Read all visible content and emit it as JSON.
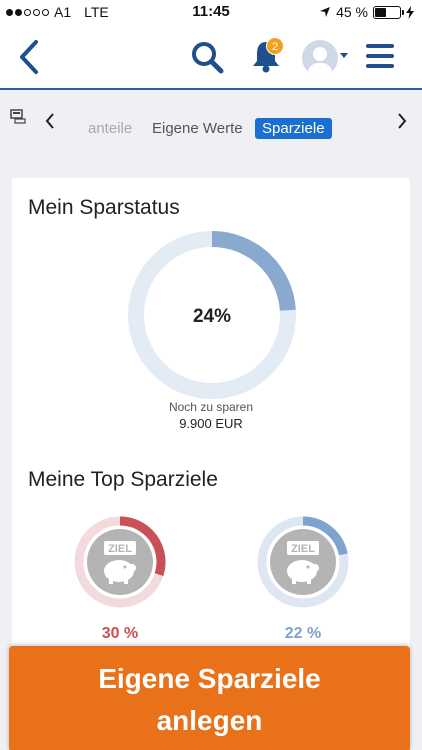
{
  "status_bar": {
    "carrier": "A1",
    "network": "LTE",
    "time": "11:45",
    "battery": "45 %",
    "battery_level": 0.45
  },
  "nav": {
    "notification_count": "2"
  },
  "tabs": {
    "items": [
      "anteile",
      "Eigene Werte",
      "Sparziele"
    ],
    "active": "Sparziele"
  },
  "savings_status": {
    "title": "Mein Sparstatus",
    "percent_label": "24%",
    "percent": 24,
    "remaining_label": "Noch zu sparen",
    "remaining_value": "9.900 EUR"
  },
  "top_goals": {
    "title": "Meine Top Sparziele",
    "icon_text": "ZIEL",
    "goals": [
      {
        "percent_label": "30 %",
        "percent": 30,
        "color": "#c95057",
        "track": "#f3dadc"
      },
      {
        "percent_label": "22 %",
        "percent": 22,
        "color": "#7fa3cf",
        "track": "#dde6f1"
      }
    ]
  },
  "cta": {
    "line1": "Eigene Sparziele",
    "line2": "anlegen"
  },
  "colors": {
    "accent": "#1a6fd0",
    "nav_icon": "#1f4f8d",
    "cta": "#e8711a",
    "donut_fill": "#8aa9cf",
    "donut_track": "#e3ebf4"
  }
}
